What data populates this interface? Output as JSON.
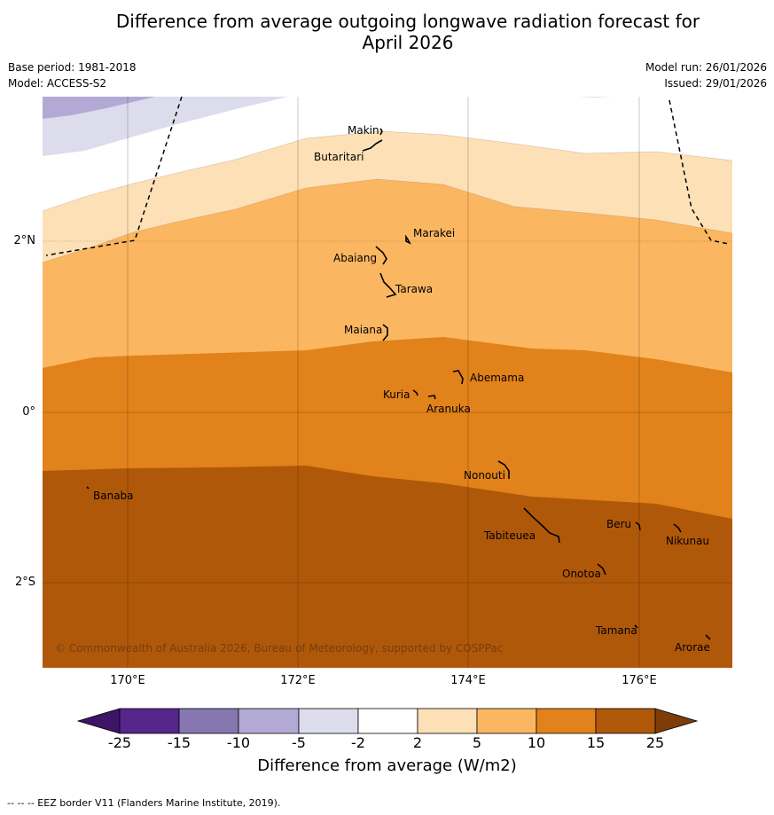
{
  "title": "Difference from average outgoing longwave radiation forecast for\nApril 2026",
  "title_line1": "Difference from average outgoing longwave radiation forecast for",
  "title_line2": "April 2026",
  "meta_left": {
    "base_period": "Base period: 1981-2018",
    "model": "Model: ACCESS-S2"
  },
  "meta_right": {
    "model_run": "Model run: 26/01/2026",
    "issued": "Issued: 29/01/2026"
  },
  "map": {
    "lon_range": [
      169,
      177.1
    ],
    "lat_range": [
      -3.0,
      3.7
    ],
    "x_ticks": [
      "170°E",
      "172°E",
      "174°E",
      "176°E"
    ],
    "y_ticks": [
      "2°N",
      "0°",
      "2°S"
    ],
    "copyright": "© Commonwealth of Australia 2026, Bureau of Meteorology, supported by COSPPac",
    "places": [
      {
        "name": "Makin"
      },
      {
        "name": "Butaritari"
      },
      {
        "name": "Marakei"
      },
      {
        "name": "Abaiang"
      },
      {
        "name": "Tarawa"
      },
      {
        "name": "Maiana"
      },
      {
        "name": "Abemama"
      },
      {
        "name": "Kuria"
      },
      {
        "name": "Aranuka"
      },
      {
        "name": "Nonouti"
      },
      {
        "name": "Banaba"
      },
      {
        "name": "Beru"
      },
      {
        "name": "Tabiteuea"
      },
      {
        "name": "Nikunau"
      },
      {
        "name": "Onotoa"
      },
      {
        "name": "Tamana"
      },
      {
        "name": "Arorae"
      }
    ]
  },
  "colorbar": {
    "label": "Difference from average (W/m2)",
    "ticks": [
      "-25",
      "-15",
      "-10",
      "-5",
      "-2",
      "2",
      "5",
      "10",
      "15",
      "25"
    ],
    "colors": [
      "#3d1466",
      "#57268a",
      "#8677b1",
      "#b2aad4",
      "#dcdced",
      "#ffffff",
      "#fde0b6",
      "#fbb661",
      "#e1821a",
      "#b0580a",
      "#7f3c06"
    ]
  },
  "footnote": "--  --  -- EEZ border V11 (Flanders Marine Institute, 2019)."
}
